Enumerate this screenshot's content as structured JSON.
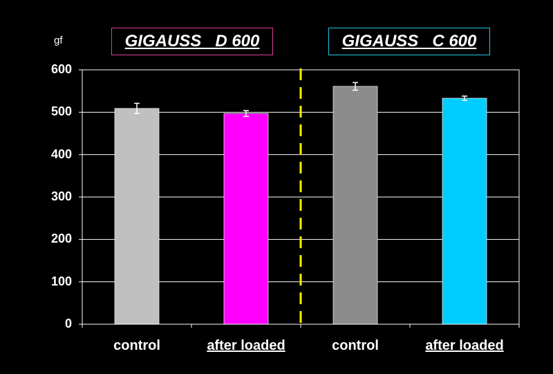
{
  "chart_data": {
    "type": "bar",
    "unit_label": "gf",
    "groups": [
      {
        "name": "GIGAUSS   D 600",
        "color": "#e0409a"
      },
      {
        "name": "GIGAUSS   C 600",
        "color": "#20c8e8"
      }
    ],
    "categories": [
      "control",
      "after loaded",
      "control",
      "after loaded"
    ],
    "values": [
      509,
      497,
      561,
      533
    ],
    "errors": [
      12,
      7,
      9,
      5
    ],
    "bar_colors": [
      "#c0c0c0",
      "#ff00ff",
      "#8c8c8c",
      "#00ccff"
    ],
    "yticks": [
      "0",
      "100",
      "200",
      "300",
      "400",
      "500",
      "600"
    ],
    "ylim": [
      0,
      600
    ],
    "grid": true,
    "divider_color": "#ffee00"
  }
}
